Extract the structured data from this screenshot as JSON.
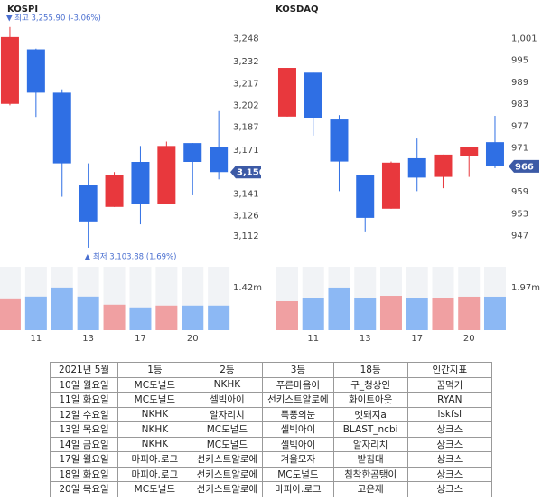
{
  "chart_data": [
    {
      "type": "candlestick",
      "title": "KOSPI",
      "categories": [
        null,
        "11",
        null,
        "13",
        null,
        "17",
        null,
        "20",
        null
      ],
      "open": [
        3203,
        3240.5,
        3210.7,
        3147,
        3132,
        3163,
        3134,
        3176,
        3173
      ],
      "high": [
        3255.9,
        3241,
        3213,
        3162,
        3156,
        3174,
        3177,
        3176,
        3198
      ],
      "low": [
        3202,
        3194,
        3139,
        3103.88,
        3132,
        3120,
        3134,
        3140,
        3151
      ],
      "close": [
        3249,
        3210.7,
        3162,
        3122,
        3154,
        3134,
        3174,
        3163,
        3156
      ],
      "volume": [
        1.03,
        1.12,
        1.42,
        1.12,
        0.85,
        0.76,
        0.82,
        0.82,
        0.82
      ],
      "ylim": [
        3097,
        3262
      ],
      "yticks": [
        {
          "value": 3248,
          "label": "3,248"
        },
        {
          "value": 3232,
          "label": "3,232"
        },
        {
          "value": 3217,
          "label": "3,217"
        },
        {
          "value": 3202,
          "label": "3,202"
        },
        {
          "value": 3187,
          "label": "3,187"
        },
        {
          "value": 3171,
          "label": "3,171"
        },
        {
          "value": 3141,
          "label": "3,141"
        },
        {
          "value": 3126,
          "label": "3,126"
        },
        {
          "value": 3112,
          "label": "3,112"
        }
      ],
      "current": {
        "value": 3156,
        "label": "3,156"
      },
      "volume_lim": [
        0,
        2.11
      ],
      "volume_ticks": [
        {
          "value": 1.42,
          "label": "1.42m"
        }
      ],
      "annotations": [
        "▼ 최고 3,255.90 (-3.06%)",
        "▲ 최저 3,103.88 (1.69%)"
      ],
      "up_color": "#e8383d",
      "down_color": "#2f6fe4",
      "volume_up_color": "#f0a0a2",
      "volume_down_color": "#8cb8f4"
    },
    {
      "type": "candlestick",
      "title": "KOSDAQ",
      "categories": [
        null,
        "11",
        null,
        "13",
        null,
        "17",
        null,
        "20",
        null
      ],
      "open": [
        979.6,
        991.6,
        978.8,
        963.6,
        954.4,
        968.2,
        963.1,
        968.7,
        972.6
      ],
      "high": [
        992.9,
        991.6,
        980,
        963.6,
        967.3,
        973.6,
        969.2,
        971.4,
        979.8
      ],
      "low": [
        979.6,
        974.4,
        959.2,
        948.2,
        954.4,
        959.2,
        960,
        963.1,
        965.5
      ],
      "close": [
        992.9,
        979.1,
        967.3,
        951.9,
        967,
        962.9,
        969.2,
        971.4,
        966
      ],
      "volume": [
        1.34,
        1.47,
        1.97,
        1.47,
        1.59,
        1.47,
        1.47,
        1.55,
        1.55
      ],
      "ylim": [
        941,
        1006.5
      ],
      "yticks": [
        {
          "value": 1001,
          "label": "1,001"
        },
        995,
        989,
        983,
        977,
        971,
        959,
        953,
        947
      ],
      "current": {
        "value": 966,
        "label": "966"
      },
      "volume_lim": [
        0,
        2.93
      ],
      "volume_ticks": [
        {
          "value": 1.97,
          "label": "1.97m"
        }
      ],
      "annotations": [],
      "up_color": "#e8383d",
      "down_color": "#2f6fe4",
      "volume_up_color": "#f0a0a2",
      "volume_down_color": "#8cb8f4"
    }
  ],
  "table": {
    "header": [
      "2021년 5월",
      "1등",
      "2등",
      "3등",
      "18등",
      "인간지표"
    ],
    "rows": [
      [
        "10일 월요일",
        "MC도널드",
        "NKHK",
        "푸른마음이",
        "구_청상인",
        "꿈먹기"
      ],
      [
        "11일 화요일",
        "MC도널드",
        "셀빅아이",
        "선키스트알로에",
        "화이트아웃",
        "RYAN"
      ],
      [
        "12일 수요일",
        "NKHK",
        "알자리치",
        "폭풍의눈",
        "멧돼지a",
        "lskfsl"
      ],
      [
        "13일 목요일",
        "NKHK",
        "MC도널드",
        "셀빅아이",
        "BLAST_ncbi",
        "상크스"
      ],
      [
        "14일 금요일",
        "NKHK",
        "MC도널드",
        "셀빅아이",
        "알자리치",
        "상크스"
      ],
      [
        "17일 월요일",
        "마피아.로그",
        "선키스트알로에",
        "겨울모자",
        "받침대",
        "상크스"
      ],
      [
        "18일 화요일",
        "마피아.로그",
        "선키스트알로에",
        "MC도널드",
        "침착한곰탱이",
        "상크스"
      ],
      [
        "20일 목요일",
        "MC도널드",
        "선키스트알로에",
        "마피아.로그",
        "고은재",
        "상크스"
      ]
    ]
  }
}
